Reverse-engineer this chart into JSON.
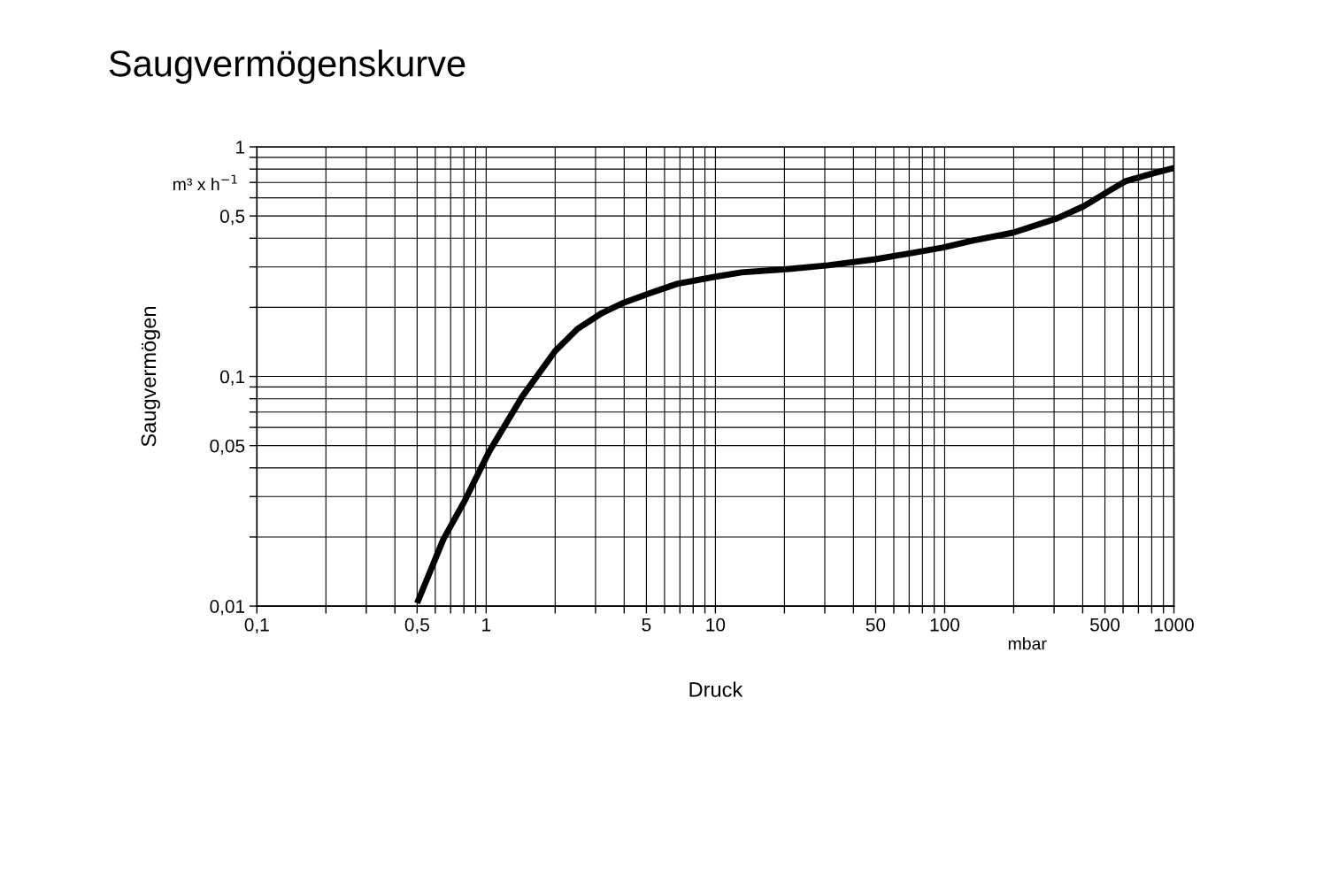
{
  "chart_data": {
    "type": "line",
    "title": "Saugvermögenskurve",
    "xlabel": "Druck",
    "ylabel": "Saugvermögen",
    "log": "xy",
    "grid": true,
    "marker": "none",
    "line_style": "solid",
    "annotations": [
      "m³ x h$^{−1}$",
      "mbar"
    ],
    "xlim": [
      0.1,
      1000
    ],
    "ylim": [
      0.01,
      1
    ],
    "xticks": [
      {
        "value": 0.1,
        "label": "0,1"
      },
      {
        "value": 0.2,
        "label": null
      },
      {
        "value": 0.3,
        "label": null
      },
      {
        "value": 0.4,
        "label": null
      },
      {
        "value": 0.5,
        "label": "0,5"
      },
      {
        "value": 0.6,
        "label": null
      },
      {
        "value": 0.7,
        "label": null
      },
      {
        "value": 0.8,
        "label": null
      },
      {
        "value": 0.9,
        "label": null
      },
      1,
      {
        "value": 2,
        "label": null
      },
      {
        "value": 3,
        "label": null
      },
      {
        "value": 4,
        "label": null
      },
      5,
      {
        "value": 6,
        "label": null
      },
      {
        "value": 7,
        "label": null
      },
      {
        "value": 8,
        "label": null
      },
      {
        "value": 9,
        "label": null
      },
      10,
      {
        "value": 20,
        "label": null
      },
      {
        "value": 30,
        "label": null
      },
      {
        "value": 40,
        "label": null
      },
      50,
      {
        "value": 60,
        "label": null
      },
      {
        "value": 70,
        "label": null
      },
      {
        "value": 80,
        "label": null
      },
      {
        "value": 90,
        "label": null
      },
      100,
      {
        "value": 200,
        "label": null
      },
      {
        "value": 300,
        "label": null
      },
      {
        "value": 400,
        "label": null
      },
      500,
      {
        "value": 600,
        "label": null
      },
      {
        "value": 700,
        "label": null
      },
      {
        "value": 800,
        "label": null
      },
      {
        "value": 900,
        "label": null
      },
      1000
    ],
    "yticks": [
      {
        "value": 0.01,
        "label": "0,01"
      },
      {
        "value": 0.02,
        "label": null
      },
      {
        "value": 0.03,
        "label": null
      },
      {
        "value": 0.04,
        "label": null
      },
      {
        "value": 0.05,
        "label": "0,05"
      },
      {
        "value": 0.06,
        "label": null
      },
      {
        "value": 0.07,
        "label": null
      },
      {
        "value": 0.08,
        "label": null
      },
      {
        "value": 0.09,
        "label": null
      },
      {
        "value": 0.1,
        "label": "0,1"
      },
      {
        "value": 0.2,
        "label": null
      },
      {
        "value": 0.3,
        "label": null
      },
      {
        "value": 0.4,
        "label": null
      },
      {
        "value": 0.5,
        "label": "0,5"
      },
      {
        "value": 0.6,
        "label": null
      },
      {
        "value": 0.7,
        "label": null
      },
      {
        "value": 0.8,
        "label": null
      },
      {
        "value": 0.9,
        "label": null
      },
      1
    ],
    "series": [
      {
        "color": "#000000",
        "x": [
          0.5,
          0.65,
          0.81,
          1.03,
          1.44,
          2.0,
          2.5,
          3.2,
          4.0,
          5.2,
          6.8,
          10,
          13,
          21,
          31,
          50,
          98,
          133,
          199,
          309,
          405,
          528,
          614,
          787,
          1000
        ],
        "values": [
          0.0103,
          0.0195,
          0.029,
          0.047,
          0.082,
          0.129,
          0.161,
          0.189,
          0.21,
          0.231,
          0.253,
          0.272,
          0.284,
          0.294,
          0.305,
          0.324,
          0.364,
          0.391,
          0.423,
          0.488,
          0.552,
          0.648,
          0.708,
          0.76,
          0.81
        ]
      }
    ]
  }
}
